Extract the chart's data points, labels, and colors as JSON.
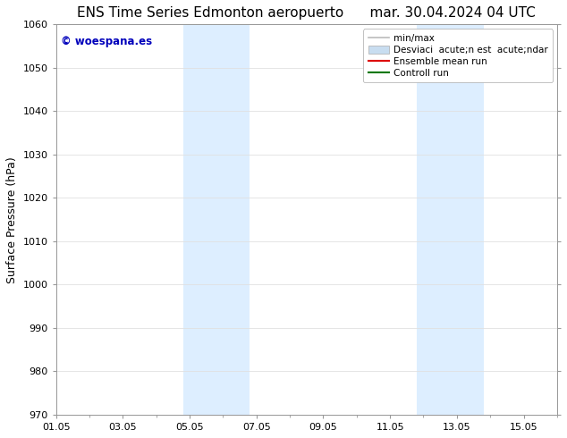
{
  "title_left": "ENS Time Series Edmonton aeropuerto",
  "title_right": "mar. 30.04.2024 04 UTC",
  "ylabel": "Surface Pressure (hPa)",
  "ylim": [
    970,
    1060
  ],
  "yticks": [
    970,
    980,
    990,
    1000,
    1010,
    1020,
    1030,
    1040,
    1050,
    1060
  ],
  "xlim": [
    0,
    15
  ],
  "xtick_labels": [
    "01.05",
    "03.05",
    "05.05",
    "07.05",
    "09.05",
    "11.05",
    "13.05",
    "15.05"
  ],
  "xtick_positions": [
    0,
    2,
    4,
    6,
    8,
    10,
    12,
    14
  ],
  "shaded_regions": [
    {
      "start": 3.8,
      "end": 5.8,
      "color": "#ddeeff"
    },
    {
      "start": 10.8,
      "end": 12.8,
      "color": "#ddeeff"
    }
  ],
  "watermark_text": "© woespana.es",
  "watermark_color": "#0000bb",
  "legend_entries": [
    {
      "label": "min/max",
      "type": "line",
      "color": "#bbbbbb",
      "lw": 1.2
    },
    {
      "label": "Desviaci  acute;n est  acute;ndar",
      "type": "patch",
      "color": "#c8ddf0"
    },
    {
      "label": "Ensemble mean run",
      "type": "line",
      "color": "#dd0000",
      "lw": 1.5
    },
    {
      "label": "Controll run",
      "type": "line",
      "color": "#007700",
      "lw": 1.5
    }
  ],
  "bg_color": "#ffffff",
  "spine_color": "#999999",
  "grid_color": "#e0e0e0",
  "title_fontsize": 11,
  "tick_fontsize": 8,
  "label_fontsize": 9,
  "legend_fontsize": 7.5
}
